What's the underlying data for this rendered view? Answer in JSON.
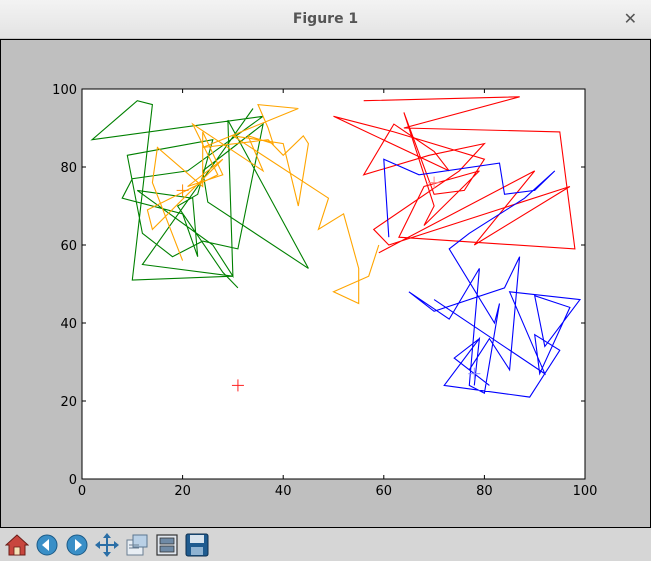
{
  "window": {
    "title": "Figure 1"
  },
  "toolbar": {
    "buttons": [
      {
        "name": "home-icon"
      },
      {
        "name": "back-icon"
      },
      {
        "name": "forward-icon"
      },
      {
        "name": "pan-icon"
      },
      {
        "name": "zoom-icon"
      },
      {
        "name": "subplots-icon"
      },
      {
        "name": "save-icon"
      }
    ]
  },
  "chart_data": {
    "type": "line",
    "title": "",
    "xlabel": "",
    "ylabel": "",
    "xlim": [
      0,
      100
    ],
    "ylim": [
      0,
      100
    ],
    "xticks": [
      "0",
      "20",
      "40",
      "60",
      "80",
      "100"
    ],
    "yticks": [
      "0",
      "20",
      "40",
      "60",
      "80",
      "100"
    ],
    "grid": false,
    "series": [
      {
        "color": "#008000",
        "points": [
          [
            34,
            95
          ],
          [
            12,
            55
          ],
          [
            30,
            52
          ],
          [
            10,
            51
          ],
          [
            14,
            96
          ],
          [
            11,
            97
          ],
          [
            2,
            87
          ],
          [
            36,
            93
          ],
          [
            21,
            79
          ],
          [
            10,
            77
          ],
          [
            8,
            72
          ],
          [
            20,
            68
          ],
          [
            23,
            57
          ],
          [
            22,
            72
          ],
          [
            11,
            74
          ],
          [
            26,
            60
          ],
          [
            30,
            52
          ],
          [
            29,
            92
          ],
          [
            45,
            54
          ],
          [
            25,
            71
          ],
          [
            24,
            79
          ],
          [
            36,
            91
          ],
          [
            31,
            59
          ],
          [
            24,
            61
          ],
          [
            18,
            57
          ],
          [
            12,
            63
          ],
          [
            9,
            83
          ],
          [
            26,
            87
          ],
          [
            23,
            73
          ],
          [
            19,
            70
          ],
          [
            28,
            53
          ],
          [
            31,
            49
          ]
        ]
      },
      {
        "color": "#ff0000",
        "points": [
          [
            56,
            97
          ],
          [
            87,
            98
          ],
          [
            64,
            90
          ],
          [
            95,
            89
          ],
          [
            98,
            59
          ],
          [
            63,
            62
          ],
          [
            68,
            75
          ],
          [
            79,
            79
          ],
          [
            68,
            65
          ],
          [
            70,
            70
          ],
          [
            64,
            94
          ],
          [
            70,
            73
          ],
          [
            76,
            74
          ],
          [
            80,
            82
          ],
          [
            62,
            89
          ],
          [
            50,
            93
          ],
          [
            73,
            79
          ],
          [
            70,
            84
          ],
          [
            62,
            91
          ],
          [
            56,
            78
          ],
          [
            69,
            83
          ],
          [
            80,
            86
          ],
          [
            75,
            79
          ],
          [
            58,
            64
          ],
          [
            61,
            60
          ],
          [
            97,
            75
          ],
          [
            78,
            60
          ],
          [
            90,
            79
          ],
          [
            59,
            58
          ]
        ]
      },
      {
        "color": "#0000ff",
        "points": [
          [
            61,
            62
          ],
          [
            60,
            82
          ],
          [
            67,
            78
          ],
          [
            83,
            81
          ],
          [
            84,
            73
          ],
          [
            90,
            74
          ],
          [
            94,
            79
          ],
          [
            88,
            72
          ],
          [
            77,
            63
          ],
          [
            73,
            59
          ],
          [
            82,
            40
          ],
          [
            83,
            45
          ],
          [
            80,
            22
          ],
          [
            77,
            24
          ],
          [
            79,
            54
          ],
          [
            73,
            41
          ],
          [
            65,
            48
          ],
          [
            70,
            43
          ],
          [
            84,
            49
          ],
          [
            87,
            57
          ],
          [
            85,
            28
          ],
          [
            81,
            36
          ],
          [
            77,
            28
          ],
          [
            81,
            24
          ],
          [
            74,
            31
          ],
          [
            79,
            36
          ],
          [
            78,
            24
          ],
          [
            79,
            36
          ],
          [
            72,
            24
          ],
          [
            89,
            21
          ],
          [
            95,
            33
          ],
          [
            90,
            37
          ],
          [
            91,
            27
          ],
          [
            97,
            44
          ],
          [
            90,
            47
          ],
          [
            92,
            34
          ],
          [
            99,
            46
          ],
          [
            85,
            48
          ],
          [
            92,
            27
          ],
          [
            70,
            46
          ]
        ]
      },
      {
        "color": "#ffa500",
        "points": [
          [
            20,
            56
          ],
          [
            14,
            76
          ],
          [
            15,
            85
          ],
          [
            24,
            75
          ],
          [
            24,
            89
          ],
          [
            28,
            78
          ],
          [
            21,
            75
          ],
          [
            28,
            82
          ],
          [
            14,
            64
          ],
          [
            13,
            69
          ],
          [
            27,
            78
          ],
          [
            22,
            91
          ],
          [
            36,
            79
          ],
          [
            33,
            88
          ],
          [
            38,
            86
          ],
          [
            37,
            90
          ],
          [
            35,
            96
          ],
          [
            43,
            95
          ],
          [
            24,
            85
          ],
          [
            37,
            87
          ],
          [
            40,
            83
          ],
          [
            44,
            88
          ],
          [
            45,
            86
          ],
          [
            43,
            70
          ],
          [
            40,
            86
          ],
          [
            30,
            88
          ],
          [
            49,
            72
          ],
          [
            47,
            64
          ],
          [
            52,
            68
          ],
          [
            55,
            54
          ],
          [
            55,
            45
          ],
          [
            50,
            48
          ],
          [
            57,
            52
          ],
          [
            59,
            60
          ]
        ]
      }
    ],
    "markers": [
      {
        "x": 20,
        "y": 74,
        "color": "#ff8800"
      },
      {
        "x": 70,
        "y": 76,
        "color": "#ff8888"
      },
      {
        "x": 78,
        "y": 27,
        "color": "#8888ff"
      },
      {
        "x": 31,
        "y": 24,
        "color": "#ff2222"
      }
    ]
  }
}
